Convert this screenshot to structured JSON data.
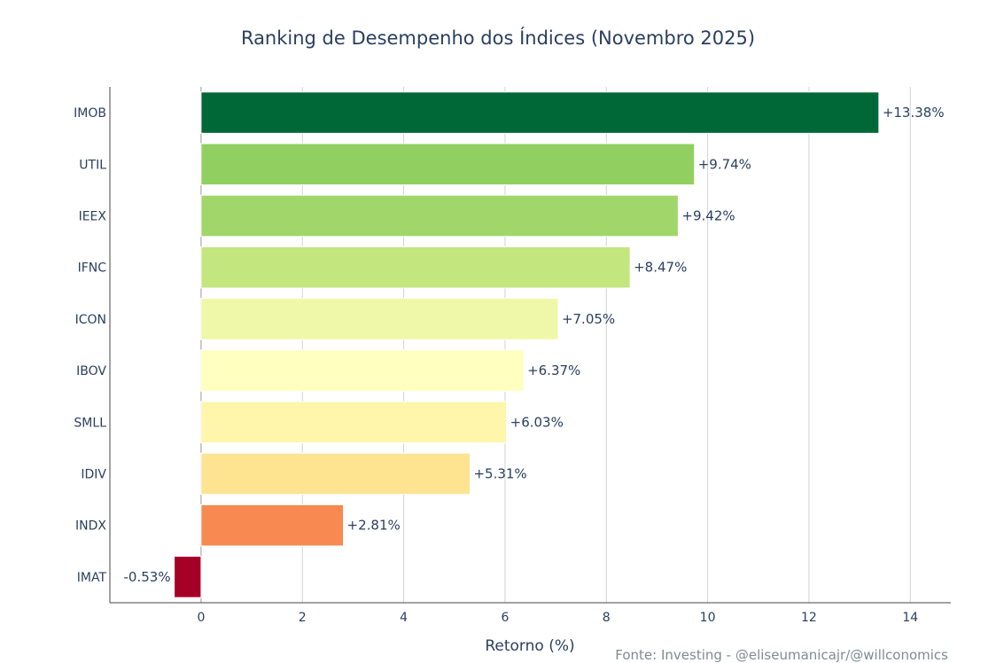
{
  "chart_data": {
    "type": "bar",
    "orientation": "horizontal",
    "title": "Ranking de Desempenho dos Índices (Novembro 2025)",
    "xlabel": "Retorno (%)",
    "ylabel": "",
    "xlim": [
      -1.8,
      14.8
    ],
    "xticks": [
      0,
      2,
      4,
      6,
      8,
      10,
      12,
      14
    ],
    "grid": true,
    "legend": "none",
    "categories": [
      "IMOB",
      "UTIL",
      "IEEX",
      "IFNC",
      "ICON",
      "IBOV",
      "SMLL",
      "IDIV",
      "INDX",
      "IMAT"
    ],
    "values": [
      13.38,
      9.74,
      9.42,
      8.47,
      7.05,
      6.37,
      6.03,
      5.31,
      2.81,
      -0.53
    ],
    "data_labels": [
      "+13.38%",
      "+9.74%",
      "+9.42%",
      "+8.47%",
      "+7.05%",
      "+6.37%",
      "+6.03%",
      "+5.31%",
      "+2.81%",
      "-0.53%"
    ],
    "colors": [
      "#006837",
      "#91cf60",
      "#a1d76a",
      "#c4e67e",
      "#eff8a8",
      "#ffffbf",
      "#fff5ab",
      "#fee491",
      "#f88950",
      "#a50026"
    ],
    "source": "Fonte: Investing - @eliseumanicajr/@willconomics"
  }
}
